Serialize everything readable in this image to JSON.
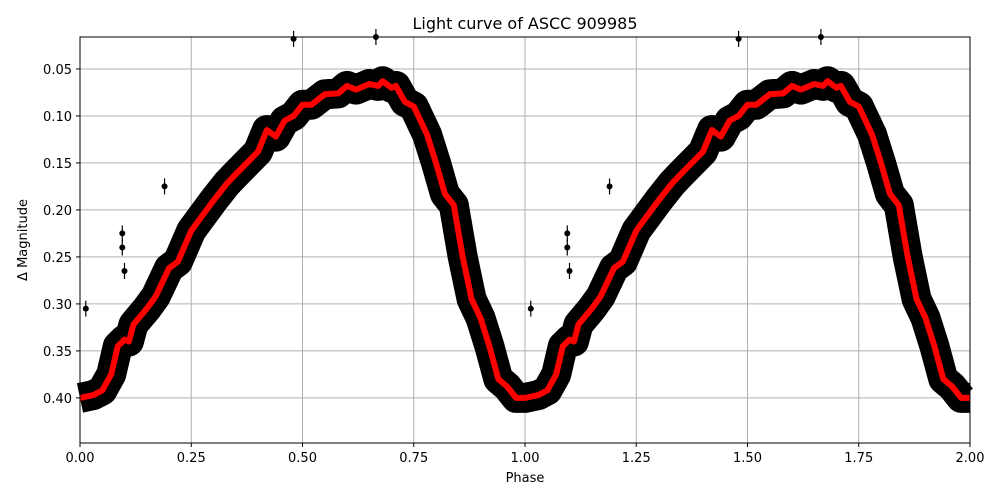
{
  "chart_data": {
    "type": "scatter",
    "title": "Light curve of ASCC 909985",
    "xlabel": "Phase",
    "ylabel": "Δ Magnitude",
    "xlim": [
      0,
      2
    ],
    "ylim": [
      0.448,
      0.016
    ],
    "y_inverted": true,
    "grid": true,
    "xticks": [
      "0.00",
      "0.25",
      "0.50",
      "0.75",
      "1.00",
      "1.25",
      "1.50",
      "1.75",
      "2.00"
    ],
    "yticks": [
      "0.05",
      "0.10",
      "0.15",
      "0.20",
      "0.25",
      "0.30",
      "0.35",
      "0.40"
    ],
    "colors": {
      "points": "#000000",
      "trend": "#ff0000",
      "grid": "#b0b0b0"
    },
    "trend": {
      "x": [
        0,
        0.03,
        0.05,
        0.07,
        0.085,
        0.1,
        0.11,
        0.12,
        0.15,
        0.17,
        0.2,
        0.22,
        0.25,
        0.3,
        0.33,
        0.35,
        0.4,
        0.42,
        0.44,
        0.46,
        0.48,
        0.5,
        0.52,
        0.55,
        0.58,
        0.6,
        0.62,
        0.65,
        0.67,
        0.68,
        0.7,
        0.71,
        0.73,
        0.75,
        0.78,
        0.8,
        0.82,
        0.84,
        0.86,
        0.88,
        0.9,
        0.92,
        0.94,
        0.96,
        0.98,
        1.0,
        1.03,
        1.05,
        1.07,
        1.085,
        1.1,
        1.11,
        1.12,
        1.15,
        1.17,
        1.2,
        1.22,
        1.25,
        1.3,
        1.33,
        1.35,
        1.4,
        1.42,
        1.44,
        1.46,
        1.48,
        1.5,
        1.52,
        1.55,
        1.58,
        1.6,
        1.62,
        1.65,
        1.67,
        1.68,
        1.7,
        1.71,
        1.73,
        1.75,
        1.78,
        1.8,
        1.82,
        1.84,
        1.86,
        1.88,
        1.9,
        1.92,
        1.94,
        1.96,
        1.98,
        2.0
      ],
      "y": [
        0.4,
        0.397,
        0.392,
        0.375,
        0.345,
        0.338,
        0.34,
        0.322,
        0.305,
        0.292,
        0.262,
        0.255,
        0.222,
        0.19,
        0.172,
        0.162,
        0.138,
        0.115,
        0.122,
        0.105,
        0.1,
        0.088,
        0.088,
        0.077,
        0.076,
        0.068,
        0.072,
        0.066,
        0.068,
        0.063,
        0.07,
        0.068,
        0.085,
        0.09,
        0.12,
        0.15,
        0.183,
        0.195,
        0.25,
        0.295,
        0.315,
        0.345,
        0.38,
        0.388,
        0.4,
        0.4,
        0.397,
        0.392,
        0.375,
        0.345,
        0.338,
        0.34,
        0.322,
        0.305,
        0.292,
        0.262,
        0.255,
        0.222,
        0.19,
        0.172,
        0.162,
        0.138,
        0.115,
        0.122,
        0.105,
        0.1,
        0.088,
        0.088,
        0.077,
        0.076,
        0.068,
        0.072,
        0.066,
        0.068,
        0.063,
        0.07,
        0.068,
        0.085,
        0.09,
        0.12,
        0.15,
        0.183,
        0.195,
        0.25,
        0.295,
        0.315,
        0.345,
        0.38,
        0.388,
        0.4,
        0.4
      ]
    },
    "outliers": {
      "x": [
        0.013,
        0.095,
        0.095,
        0.1,
        0.19,
        0.48,
        0.665,
        0.86,
        1.013,
        1.095,
        1.095,
        1.1,
        1.19,
        1.48,
        1.665,
        1.86
      ],
      "y": [
        0.305,
        0.225,
        0.24,
        0.265,
        0.175,
        0.018,
        0.016,
        0.2,
        0.305,
        0.225,
        0.24,
        0.265,
        0.175,
        0.018,
        0.016,
        0.2
      ]
    }
  }
}
